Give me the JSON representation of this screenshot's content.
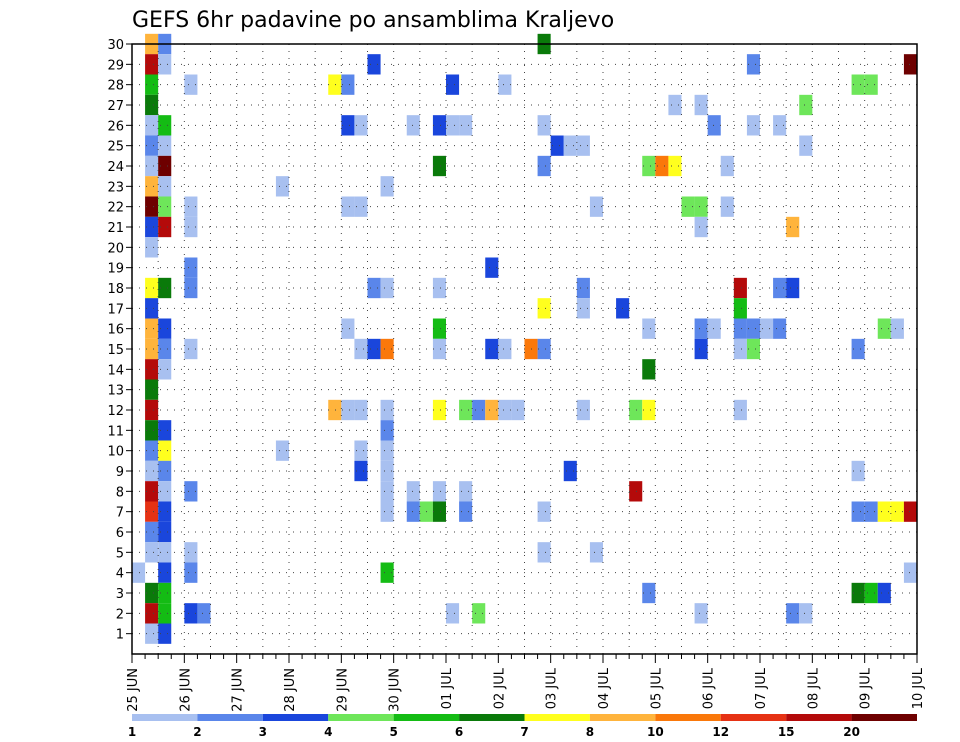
{
  "chart_data": {
    "type": "heatmap",
    "title": "GEFS 6hr padavine po ansamblima Kraljevo",
    "xlabel": "",
    "ylabel": "",
    "x_tick_labels": [
      "25 JUN",
      "26 JUN",
      "27 JUN",
      "28 JUN",
      "29 JUN",
      "30 JUN",
      "01 JUL",
      "02 JUL",
      "03 JUL",
      "04 JUL",
      "05 JUL",
      "06 JUL",
      "07 JUL",
      "08 JUL",
      "09 JUL",
      "10 JUL"
    ],
    "y_tick_labels": [
      "1",
      "2",
      "3",
      "4",
      "5",
      "6",
      "7",
      "8",
      "9",
      "10",
      "11",
      "12",
      "13",
      "14",
      "15",
      "16",
      "17",
      "18",
      "19",
      "20",
      "21",
      "22",
      "23",
      "24",
      "25",
      "26",
      "27",
      "28",
      "29",
      "30"
    ],
    "x_range_days": [
      0,
      15
    ],
    "y_range_members": [
      0,
      30
    ],
    "grid": true,
    "legend": {
      "placement": "bottom",
      "thresholds": [
        "1",
        "2",
        "3",
        "4",
        "5",
        "6",
        "7",
        "8",
        "10",
        "12",
        "15",
        "20"
      ],
      "colors": [
        "#a8c0f0",
        "#5a86ea",
        "#1a46dc",
        "#6ee65a",
        "#14bc14",
        "#0a7a0a",
        "#ffff1e",
        "#ffb43c",
        "#fa780a",
        "#e63214",
        "#b40a0a",
        "#6e0000"
      ]
    },
    "bin_legend_index": {
      "0": "1-2",
      "1": "2-3",
      "2": "3-4",
      "3": "4-5",
      "4": "5-6",
      "5": "6-7",
      "6": "7-8",
      "7": "8-10",
      "8": "10-12",
      "9": "12-15",
      "10": "15-20",
      "11": ">20"
    },
    "cells_note": "each cell: [day offset from 25 JUN 00Z, ensemble member, color bin index]",
    "cells": [
      [
        0.25,
        30,
        7
      ],
      [
        0.5,
        30,
        1
      ],
      [
        7.75,
        30,
        5
      ],
      [
        0.25,
        29,
        10
      ],
      [
        0.5,
        29,
        0
      ],
      [
        4.5,
        29,
        2
      ],
      [
        11.75,
        29,
        1
      ],
      [
        15,
        29,
        11
      ],
      [
        0.25,
        28,
        4
      ],
      [
        1.0,
        28,
        0
      ],
      [
        3.75,
        28,
        6
      ],
      [
        4.0,
        28,
        1
      ],
      [
        6.0,
        28,
        2
      ],
      [
        7.0,
        28,
        0
      ],
      [
        13.75,
        28,
        3
      ],
      [
        14.0,
        28,
        3
      ],
      [
        0.25,
        27,
        5
      ],
      [
        10.25,
        27,
        0
      ],
      [
        10.75,
        27,
        0
      ],
      [
        12.75,
        27,
        3
      ],
      [
        0.25,
        26,
        0
      ],
      [
        0.5,
        26,
        4
      ],
      [
        4.0,
        26,
        2
      ],
      [
        4.25,
        26,
        0
      ],
      [
        5.25,
        26,
        0
      ],
      [
        5.75,
        26,
        2
      ],
      [
        6.0,
        26,
        0
      ],
      [
        6.25,
        26,
        0
      ],
      [
        7.75,
        26,
        0
      ],
      [
        11.0,
        26,
        1
      ],
      [
        11.75,
        26,
        0
      ],
      [
        12.25,
        26,
        0
      ],
      [
        0.25,
        25,
        1
      ],
      [
        0.5,
        25,
        0
      ],
      [
        8.0,
        25,
        2
      ],
      [
        8.25,
        25,
        0
      ],
      [
        8.5,
        25,
        0
      ],
      [
        12.75,
        25,
        0
      ],
      [
        0.25,
        24,
        0
      ],
      [
        0.5,
        24,
        11
      ],
      [
        5.75,
        24,
        5
      ],
      [
        7.75,
        24,
        1
      ],
      [
        9.75,
        24,
        3
      ],
      [
        10.0,
        24,
        8
      ],
      [
        10.25,
        24,
        6
      ],
      [
        11.25,
        24,
        0
      ],
      [
        0.25,
        23,
        7
      ],
      [
        0.5,
        23,
        0
      ],
      [
        2.75,
        23,
        0
      ],
      [
        4.75,
        23,
        0
      ],
      [
        0.25,
        22,
        11
      ],
      [
        0.5,
        22,
        3
      ],
      [
        1.0,
        22,
        0
      ],
      [
        4.0,
        22,
        0
      ],
      [
        4.25,
        22,
        0
      ],
      [
        8.75,
        22,
        0
      ],
      [
        10.5,
        22,
        3
      ],
      [
        10.75,
        22,
        3
      ],
      [
        11.25,
        22,
        0
      ],
      [
        0.25,
        21,
        2
      ],
      [
        0.5,
        21,
        10
      ],
      [
        1.0,
        21,
        0
      ],
      [
        10.75,
        21,
        0
      ],
      [
        12.5,
        21,
        7
      ],
      [
        0.25,
        20,
        0
      ],
      [
        6.75,
        19,
        2
      ],
      [
        1.0,
        19,
        1
      ],
      [
        11.5,
        18,
        10
      ],
      [
        12.25,
        18,
        1
      ],
      [
        12.5,
        18,
        2
      ],
      [
        0.25,
        18,
        6
      ],
      [
        0.5,
        18,
        5
      ],
      [
        1.0,
        18,
        1
      ],
      [
        4.5,
        18,
        1
      ],
      [
        4.75,
        18,
        0
      ],
      [
        5.75,
        18,
        0
      ],
      [
        8.5,
        18,
        1
      ],
      [
        0.25,
        17,
        2
      ],
      [
        7.75,
        17,
        6
      ],
      [
        8.5,
        17,
        0
      ],
      [
        9.25,
        17,
        2
      ],
      [
        11.5,
        17,
        4
      ],
      [
        0.25,
        16,
        7
      ],
      [
        0.5,
        16,
        2
      ],
      [
        4.0,
        16,
        0
      ],
      [
        5.75,
        16,
        4
      ],
      [
        9.75,
        16,
        0
      ],
      [
        10.75,
        16,
        1
      ],
      [
        11.0,
        16,
        0
      ],
      [
        11.5,
        16,
        1
      ],
      [
        11.75,
        16,
        1
      ],
      [
        12.0,
        16,
        0
      ],
      [
        12.25,
        16,
        1
      ],
      [
        14.25,
        16,
        3
      ],
      [
        14.5,
        16,
        0
      ],
      [
        0.25,
        15,
        7
      ],
      [
        0.5,
        15,
        1
      ],
      [
        1.0,
        15,
        0
      ],
      [
        4.25,
        15,
        0
      ],
      [
        4.5,
        15,
        2
      ],
      [
        4.75,
        15,
        8
      ],
      [
        5.75,
        15,
        0
      ],
      [
        6.75,
        15,
        2
      ],
      [
        7.0,
        15,
        0
      ],
      [
        7.5,
        15,
        8
      ],
      [
        7.75,
        15,
        1
      ],
      [
        10.75,
        15,
        2
      ],
      [
        11.5,
        15,
        0
      ],
      [
        11.75,
        15,
        3
      ],
      [
        13.75,
        15,
        1
      ],
      [
        0.25,
        14,
        10
      ],
      [
        0.5,
        14,
        0
      ],
      [
        9.75,
        14,
        5
      ],
      [
        0.25,
        13,
        5
      ],
      [
        0.25,
        12,
        10
      ],
      [
        3.75,
        12,
        7
      ],
      [
        4.0,
        12,
        0
      ],
      [
        4.25,
        12,
        0
      ],
      [
        4.75,
        12,
        0
      ],
      [
        5.75,
        12,
        6
      ],
      [
        6.25,
        12,
        3
      ],
      [
        6.5,
        12,
        1
      ],
      [
        6.75,
        12,
        7
      ],
      [
        7.0,
        12,
        0
      ],
      [
        7.25,
        12,
        0
      ],
      [
        8.5,
        12,
        0
      ],
      [
        9.5,
        12,
        3
      ],
      [
        9.75,
        12,
        6
      ],
      [
        11.5,
        12,
        0
      ],
      [
        0.25,
        11,
        5
      ],
      [
        0.5,
        11,
        2
      ],
      [
        4.75,
        11,
        1
      ],
      [
        0.25,
        10,
        1
      ],
      [
        0.5,
        10,
        6
      ],
      [
        2.75,
        10,
        0
      ],
      [
        4.25,
        10,
        0
      ],
      [
        4.75,
        10,
        0
      ],
      [
        0.25,
        9,
        0
      ],
      [
        0.5,
        9,
        1
      ],
      [
        4.25,
        9,
        2
      ],
      [
        4.75,
        9,
        0
      ],
      [
        8.25,
        9,
        2
      ],
      [
        13.75,
        9,
        0
      ],
      [
        0.25,
        8,
        10
      ],
      [
        0.5,
        8,
        0
      ],
      [
        1.0,
        8,
        1
      ],
      [
        4.75,
        8,
        0
      ],
      [
        5.25,
        8,
        0
      ],
      [
        5.75,
        8,
        0
      ],
      [
        6.25,
        8,
        0
      ],
      [
        9.5,
        8,
        10
      ],
      [
        0.25,
        7,
        9
      ],
      [
        0.5,
        7,
        2
      ],
      [
        4.75,
        7,
        0
      ],
      [
        5.25,
        7,
        1
      ],
      [
        5.5,
        7,
        3
      ],
      [
        5.75,
        7,
        5
      ],
      [
        6.25,
        7,
        1
      ],
      [
        7.75,
        7,
        0
      ],
      [
        13.75,
        7,
        1
      ],
      [
        14.0,
        7,
        1
      ],
      [
        14.25,
        7,
        6
      ],
      [
        14.5,
        7,
        6
      ],
      [
        15.0,
        7,
        10
      ],
      [
        0.25,
        6,
        1
      ],
      [
        0.5,
        6,
        2
      ],
      [
        0.25,
        5,
        0
      ],
      [
        0.5,
        5,
        0
      ],
      [
        1.0,
        5,
        0
      ],
      [
        7.75,
        5,
        0
      ],
      [
        8.75,
        5,
        0
      ],
      [
        0.0,
        4,
        0
      ],
      [
        0.5,
        4,
        2
      ],
      [
        1.0,
        4,
        1
      ],
      [
        4.75,
        4,
        4
      ],
      [
        15.0,
        4,
        0
      ],
      [
        0.25,
        3,
        5
      ],
      [
        0.5,
        3,
        4
      ],
      [
        9.75,
        3,
        1
      ],
      [
        13.75,
        3,
        5
      ],
      [
        14.0,
        3,
        4
      ],
      [
        14.25,
        3,
        2
      ],
      [
        0.25,
        2,
        10
      ],
      [
        0.5,
        2,
        4
      ],
      [
        1.0,
        2,
        2
      ],
      [
        1.25,
        2,
        1
      ],
      [
        6.0,
        2,
        0
      ],
      [
        6.5,
        2,
        3
      ],
      [
        10.75,
        2,
        0
      ],
      [
        12.5,
        2,
        1
      ],
      [
        12.75,
        2,
        0
      ],
      [
        0.25,
        1,
        0
      ],
      [
        0.5,
        1,
        2
      ]
    ]
  }
}
